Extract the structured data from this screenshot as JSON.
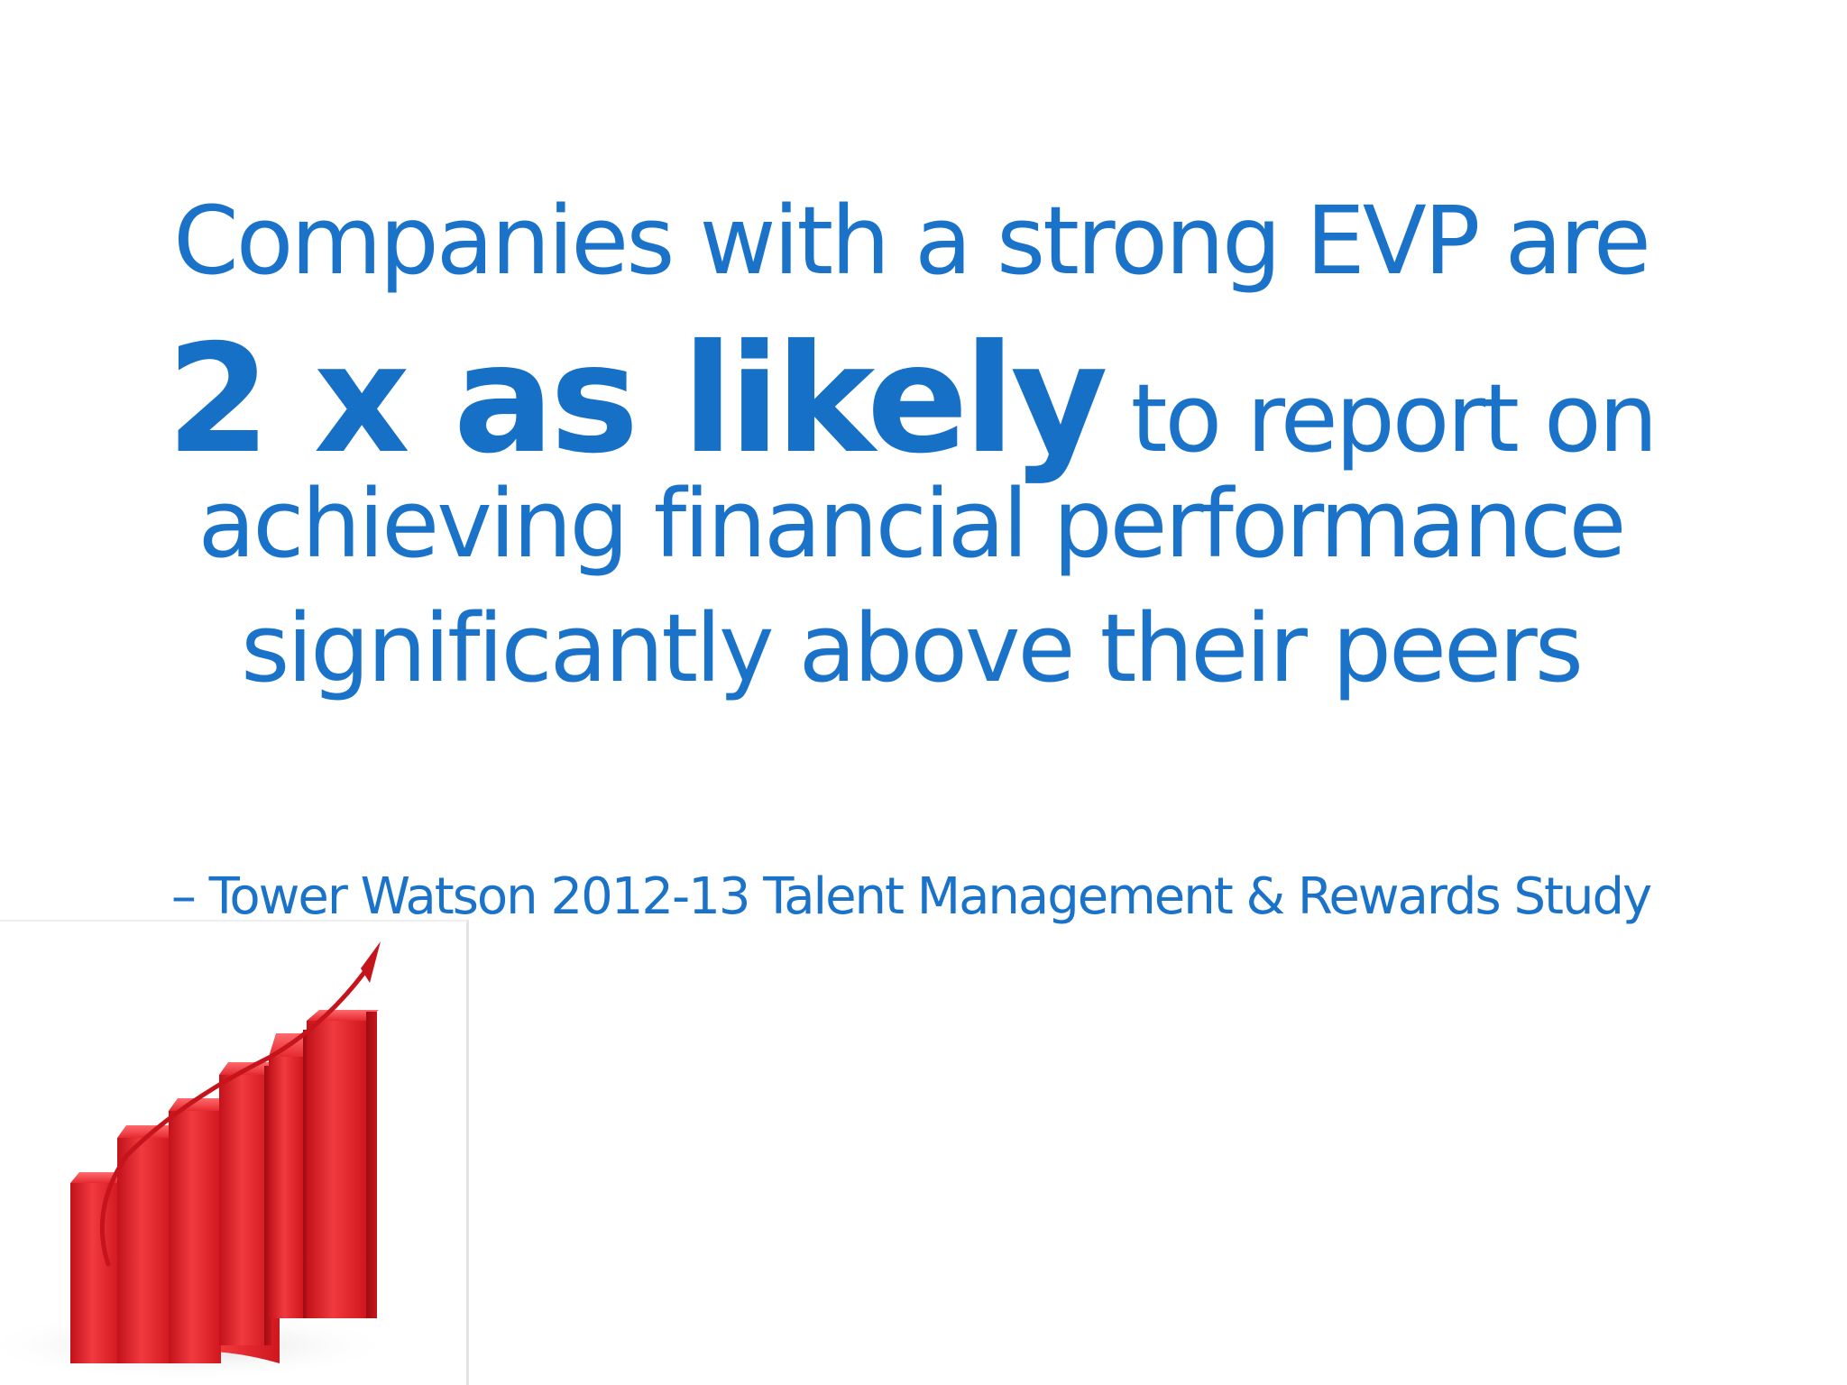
{
  "quote": {
    "line1": "Companies with a strong EVP are",
    "emphasis": "2 x as likely",
    "line2_rest": " to report on",
    "line3": "achieving financial performance",
    "line4": "significantly above their peers"
  },
  "attribution": "– Tower Watson 2012-13 Talent Management & Rewards Study",
  "illustration": {
    "name": "rising-red-bar-chart-with-arrow",
    "bar_color": "#e8202a",
    "bar_shadow_color": "#b5121b",
    "arrow_color": "#d81a22"
  },
  "colors": {
    "text": "#1a73c9",
    "background": "#ffffff"
  }
}
